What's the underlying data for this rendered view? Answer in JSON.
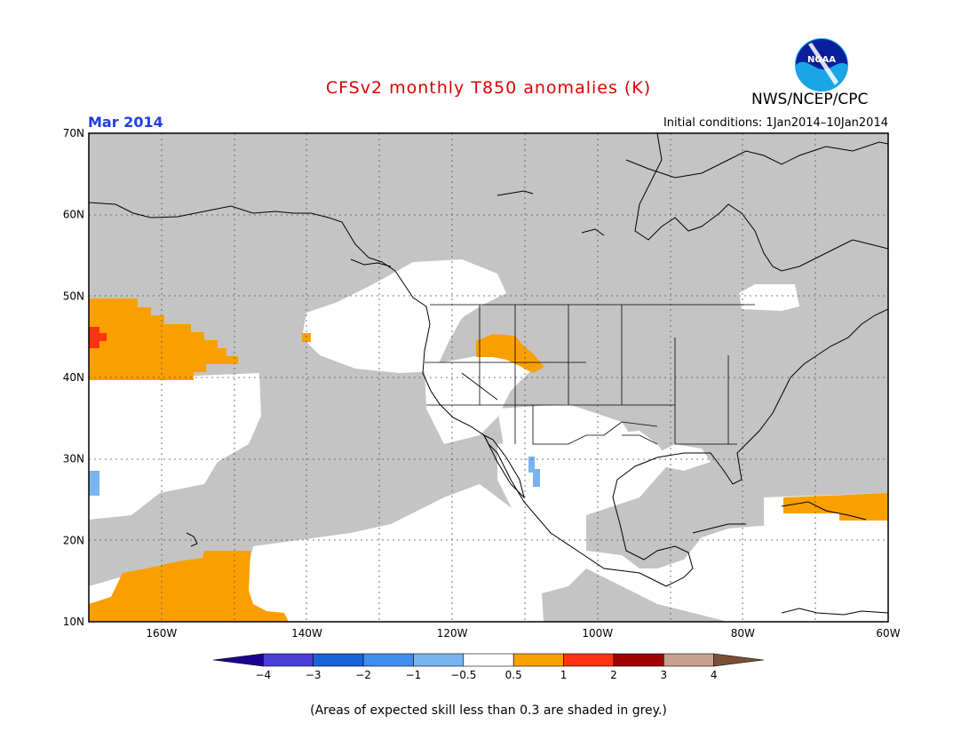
{
  "title": "CFSv2 monthly T850 anomalies (K)",
  "agency": "NWS/NCEP/CPC",
  "logo_text": "NOAA",
  "valid_month": "Mar 2014",
  "initial_conditions": "Initial conditions: 1Jan2014–10Jan2014",
  "footnote": "(Areas of expected skill less than 0.3 are shaded in grey.)",
  "map": {
    "lon_range": [
      -170,
      -60
    ],
    "lat_range": [
      10,
      70
    ],
    "lat_labels": [
      "70N",
      "60N",
      "50N",
      "40N",
      "30N",
      "20N",
      "10N"
    ],
    "lon_labels": [
      "160W",
      "140W",
      "120W",
      "100W",
      "80W",
      "60W"
    ],
    "colors": {
      "low_skill": "#c4c4c4",
      "neutral": "#ffffff",
      "anom_pos_05_1": "#f9a000",
      "anom_pos_1_2": "#ff3311",
      "anom_neg_1_05": "#78b4f0",
      "coast": "#000000"
    }
  },
  "colorbar": {
    "labels": [
      "−4",
      "−3",
      "−2",
      "−1",
      "−0.5",
      "0.5",
      "1",
      "2",
      "3",
      "4"
    ],
    "colors": [
      "#1c0094",
      "#4a3fd6",
      "#1b63d8",
      "#3f8ef0",
      "#78b4f0",
      "#ffffff",
      "#f9a000",
      "#ff3311",
      "#a00000",
      "#c8a090",
      "#7a4f36"
    ]
  }
}
